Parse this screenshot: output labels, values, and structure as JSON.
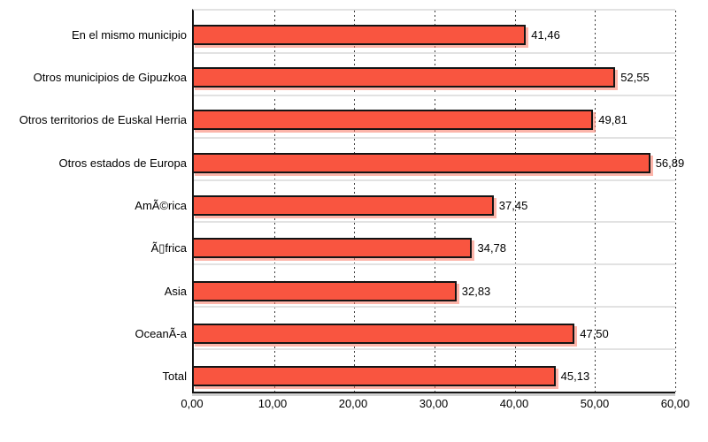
{
  "chart_data": {
    "type": "bar",
    "orientation": "horizontal",
    "title": "",
    "xlabel": "",
    "ylabel": "",
    "categories": [
      "En el mismo municipio",
      "Otros municipios de Gipuzkoa",
      "Otros territorios de Euskal Herria",
      "Otros estados de Europa",
      "AmÃ©rica",
      "Ã▯frica",
      "Asia",
      "OceanÃ-a",
      "Total"
    ],
    "values": [
      41.46,
      52.55,
      49.81,
      56.89,
      37.45,
      34.78,
      32.83,
      47.5,
      45.13
    ],
    "value_labels": [
      "41,46",
      "52,55",
      "49,81",
      "56,89",
      "37,45",
      "34,78",
      "32,83",
      "47,50",
      "45,13"
    ],
    "x_ticks": [
      "0,00",
      "10,00",
      "20,00",
      "30,00",
      "40,00",
      "50,00",
      "60,00"
    ],
    "x_tick_values": [
      0,
      10,
      20,
      30,
      40,
      50,
      60
    ],
    "xlim": [
      0,
      60
    ],
    "grid": "vertical-dotted",
    "legend": "none",
    "bar_color": "#f95540",
    "bar_border_color": "#141414",
    "background_color": "#ffffff",
    "separator_color": "#e2e2e2"
  }
}
